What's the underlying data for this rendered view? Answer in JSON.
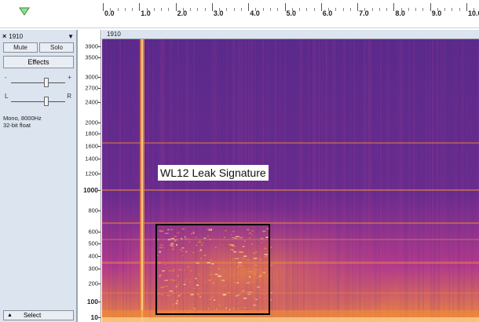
{
  "ruler": {
    "play_icon": "play-position-marker-icon",
    "labels": [
      "0.0",
      "1.0",
      "2.0",
      "3.0",
      "4.0",
      "5.0",
      "6.0",
      "7.0",
      "8.0",
      "9.0",
      "10.0"
    ]
  },
  "track": {
    "close_label": "×",
    "name": "1910",
    "menu_arrow": "▼",
    "mute_label": "Mute",
    "solo_label": "Solo",
    "effects_label": "Effects",
    "gain_minus": "-",
    "gain_plus": "+",
    "pan_left": "L",
    "pan_right": "R",
    "format_line1": "Mono, 8000Hz",
    "format_line2": "32-bit float",
    "select_label": "Select",
    "select_arrow": "▲"
  },
  "spectrogram": {
    "title": "1910",
    "freq_labels": [
      {
        "text": "3900",
        "bold": false
      },
      {
        "text": "3500",
        "bold": false
      },
      {
        "text": "3000",
        "bold": false
      },
      {
        "text": "2700",
        "bold": false
      },
      {
        "text": "2400",
        "bold": false
      },
      {
        "text": "2000",
        "bold": false
      },
      {
        "text": "1800",
        "bold": false
      },
      {
        "text": "1600",
        "bold": false
      },
      {
        "text": "1400",
        "bold": false
      },
      {
        "text": "1200",
        "bold": false
      },
      {
        "text": "1000",
        "bold": true
      },
      {
        "text": "800",
        "bold": false
      },
      {
        "text": "600",
        "bold": false
      },
      {
        "text": "500",
        "bold": false
      },
      {
        "text": "400",
        "bold": false
      },
      {
        "text": "300",
        "bold": false
      },
      {
        "text": "200",
        "bold": false
      },
      {
        "text": "100",
        "bold": true
      },
      {
        "text": "10",
        "bold": true
      }
    ],
    "annotation": "WL12 Leak Signature",
    "colors": {
      "low": "#5a2a8c",
      "mid": "#b23a8c",
      "high": "#f08a3c",
      "peak": "#ffe9a0"
    }
  }
}
